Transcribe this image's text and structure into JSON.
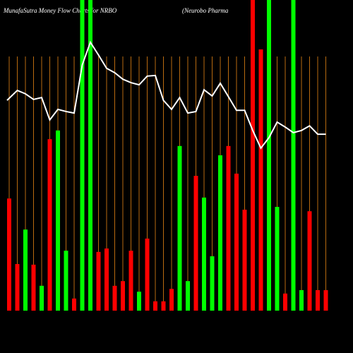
{
  "chart_data": {
    "type": "bar",
    "title": "MunafaSutra  Money Flow  Charts for NRBO",
    "subtitle": "(Neurobo  Pharma",
    "ylim": [
      0,
      100
    ],
    "y2lim": [
      0,
      100
    ],
    "series": [
      {
        "type": "bar",
        "values": [
          36.1,
          15.0,
          26.1,
          14.8,
          8.0,
          55.2,
          58.0,
          19.3,
          3.9,
          100,
          100,
          18.9,
          20.0,
          8.0,
          9.5,
          19.3,
          6.1,
          23.2,
          3.0,
          3.0,
          7.0,
          53.0,
          9.5,
          43.4,
          36.4,
          17.5,
          50.0,
          53.0,
          44.1,
          32.5,
          100,
          84.1,
          100,
          33.4,
          5.5,
          100,
          6.6,
          32.0,
          6.6,
          6.6
        ],
        "colors": [
          "#ff0000",
          "#ff0000",
          "#00ff00",
          "#ff0000",
          "#00ff00",
          "#ff0000",
          "#00ff00",
          "#00ff00",
          "#ff0000",
          "#00ff00",
          "#00ff00",
          "#ff0000",
          "#ff0000",
          "#ff0000",
          "#ff0000",
          "#ff0000",
          "#00ff00",
          "#ff0000",
          "#ff0000",
          "#ff0000",
          "#ff0000",
          "#00ff00",
          "#00ff00",
          "#ff0000",
          "#00ff00",
          "#00ff00",
          "#00ff00",
          "#ff0000",
          "#ff0000",
          "#ff0000",
          "#ff0000",
          "#ff0000",
          "#00ff00",
          "#00ff00",
          "#ff0000",
          "#00ff00",
          "#00ff00",
          "#ff0000",
          "#ff0000",
          "#ff0000"
        ]
      },
      {
        "type": "line",
        "axis": "y2",
        "color": "#ffffff",
        "values": [
          67.7,
          70.9,
          69.8,
          68.0,
          68.6,
          61.4,
          64.8,
          64.1,
          63.6,
          79.1,
          86.4,
          82.3,
          78.0,
          76.6,
          74.5,
          73.4,
          72.7,
          75.5,
          75.7,
          67.7,
          64.8,
          68.6,
          63.6,
          64.1,
          71.1,
          69.1,
          73.2,
          68.9,
          64.5,
          64.5,
          58.0,
          52.3,
          55.7,
          60.7,
          59.1,
          57.3,
          58.0,
          59.5,
          56.8,
          56.8
        ]
      }
    ]
  }
}
